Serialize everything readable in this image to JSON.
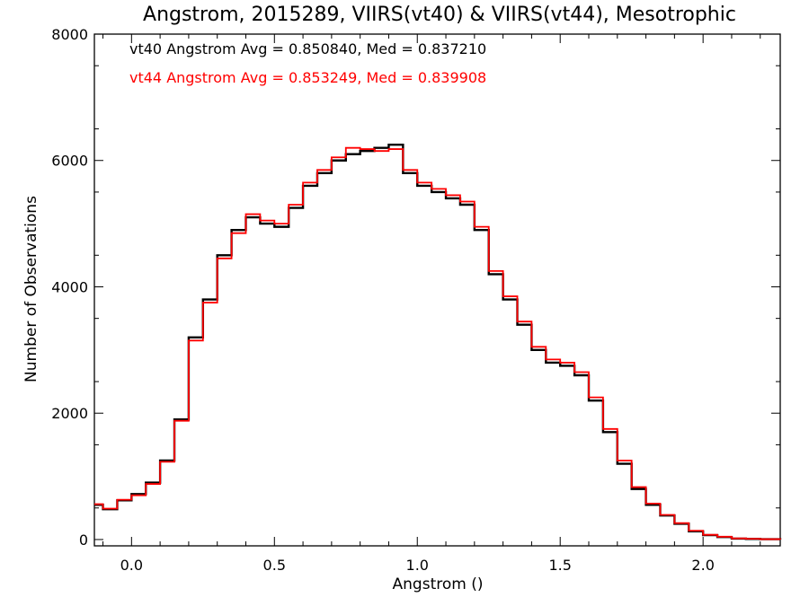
{
  "chart_data": {
    "type": "line",
    "title": "Angstrom, 2015289, VIIRS(vt40) & VIIRS(vt44), Mesotrophic",
    "xlabel": "Angstrom ()",
    "ylabel": "Number of Observations",
    "xlim": [
      -0.13,
      2.27
    ],
    "ylim": [
      -100,
      8000
    ],
    "x_ticks": [
      0.0,
      0.5,
      1.0,
      1.5,
      2.0
    ],
    "x_tick_labels": [
      "0.0",
      "0.5",
      "1.0",
      "1.5",
      "2.0"
    ],
    "y_ticks": [
      0,
      2000,
      4000,
      6000,
      8000
    ],
    "y_tick_labels": [
      "0",
      "2000",
      "4000",
      "6000",
      "8000"
    ],
    "step": true,
    "grid": false,
    "annotations": [
      {
        "text": "vt40 Angstrom Avg = 0.850840, Med = 0.837210",
        "color": "#000000"
      },
      {
        "text": "vt44 Angstrom Avg = 0.853249, Med = 0.839908",
        "color": "#ff0000"
      }
    ],
    "x": [
      -0.13,
      -0.1,
      -0.05,
      0.0,
      0.05,
      0.1,
      0.15,
      0.2,
      0.25,
      0.3,
      0.35,
      0.4,
      0.45,
      0.5,
      0.55,
      0.6,
      0.65,
      0.7,
      0.75,
      0.8,
      0.85,
      0.9,
      0.95,
      1.0,
      1.05,
      1.1,
      1.15,
      1.2,
      1.25,
      1.3,
      1.35,
      1.4,
      1.45,
      1.5,
      1.55,
      1.6,
      1.65,
      1.7,
      1.75,
      1.8,
      1.85,
      1.9,
      1.95,
      2.0,
      2.05,
      2.1,
      2.15,
      2.2,
      2.27
    ],
    "series": [
      {
        "name": "vt40",
        "color": "#000000",
        "values": [
          550,
          480,
          620,
          720,
          900,
          1250,
          1900,
          3200,
          3800,
          4500,
          4900,
          5100,
          5000,
          4950,
          5250,
          5600,
          5800,
          6000,
          6100,
          6150,
          6200,
          6250,
          5800,
          5600,
          5500,
          5400,
          5300,
          4900,
          4200,
          3800,
          3400,
          3000,
          2800,
          2750,
          2600,
          2200,
          1700,
          1200,
          800,
          550,
          380,
          250,
          130,
          70,
          40,
          15,
          10,
          5,
          0
        ]
      },
      {
        "name": "vt44",
        "color": "#ff0000",
        "values": [
          560,
          490,
          630,
          700,
          880,
          1230,
          1880,
          3150,
          3750,
          4450,
          4850,
          5150,
          5050,
          5000,
          5300,
          5650,
          5850,
          6050,
          6200,
          6180,
          6150,
          6180,
          5850,
          5650,
          5550,
          5450,
          5350,
          4950,
          4250,
          3850,
          3450,
          3050,
          2850,
          2800,
          2650,
          2250,
          1750,
          1250,
          830,
          570,
          390,
          260,
          140,
          75,
          45,
          18,
          12,
          6,
          0
        ]
      }
    ]
  }
}
